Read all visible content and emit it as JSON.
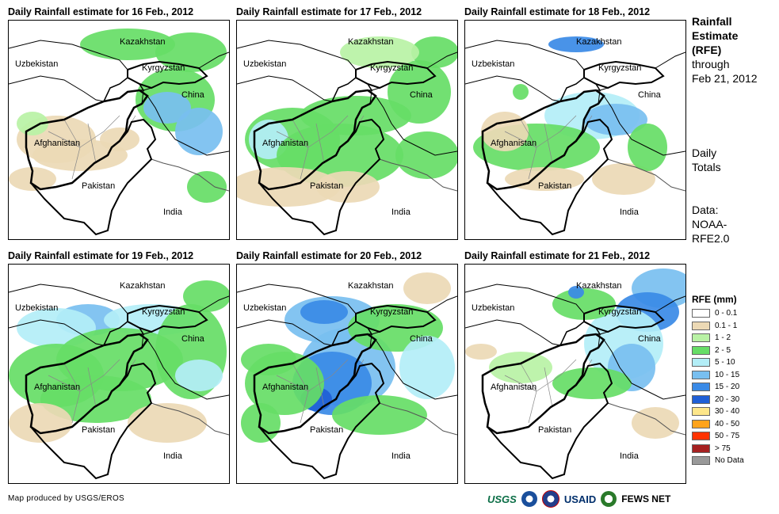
{
  "panels": [
    {
      "title": "Daily Rainfall estimate for 16 Feb., 2012",
      "key": "d16"
    },
    {
      "title": "Daily Rainfall estimate for 17 Feb., 2012",
      "key": "d17"
    },
    {
      "title": "Daily Rainfall estimate for 18 Feb., 2012",
      "key": "d18"
    },
    {
      "title": "Daily Rainfall estimate for 19 Feb., 2012",
      "key": "d19"
    },
    {
      "title": "Daily Rainfall estimate for 20 Feb., 2012",
      "key": "d20"
    },
    {
      "title": "Daily Rainfall estimate for 21 Feb., 2012",
      "key": "d21"
    }
  ],
  "place_labels": {
    "kazakhstan": "Kazakhstan",
    "uzbekistan": "Uzbekistan",
    "kyrgyzstan": "Kyrgyzstan",
    "china": "China",
    "afghanistan": "Afghanistan",
    "pakistan": "Pakistan",
    "india": "India"
  },
  "side": {
    "title_lines": [
      "Rainfall",
      "Estimate",
      "(RFE)"
    ],
    "through_lines": [
      "through",
      "Feb 21, 2012"
    ],
    "totals_lines": [
      "Daily",
      "Totals"
    ],
    "data_lines": [
      "Data:",
      "NOAA-",
      "RFE2.0"
    ]
  },
  "legend": {
    "title": "RFE (mm)",
    "items": [
      {
        "label": "0 - 0.1",
        "color": "#ffffff"
      },
      {
        "label": "0.1 - 1",
        "color": "#ecd9b5"
      },
      {
        "label": "1 - 2",
        "color": "#b9f2a5"
      },
      {
        "label": "2 - 5",
        "color": "#66dd66"
      },
      {
        "label": "5 - 10",
        "color": "#b3eef7"
      },
      {
        "label": "10 - 15",
        "color": "#78bff0"
      },
      {
        "label": "15 - 20",
        "color": "#3a8ae6"
      },
      {
        "label": "20 - 30",
        "color": "#1f5fd6"
      },
      {
        "label": "30 - 40",
        "color": "#fde68a"
      },
      {
        "label": "40 - 50",
        "color": "#ffa31a"
      },
      {
        "label": "50 - 75",
        "color": "#ff3300"
      },
      {
        "label": "> 75",
        "color": "#a52020"
      },
      {
        "label": "No Data",
        "color": "#999999"
      }
    ]
  },
  "credit": "Map produced by USGS/EROS",
  "logos": {
    "usgs": "USGS",
    "usaid": "USAID",
    "fews": "FEWS NET"
  }
}
